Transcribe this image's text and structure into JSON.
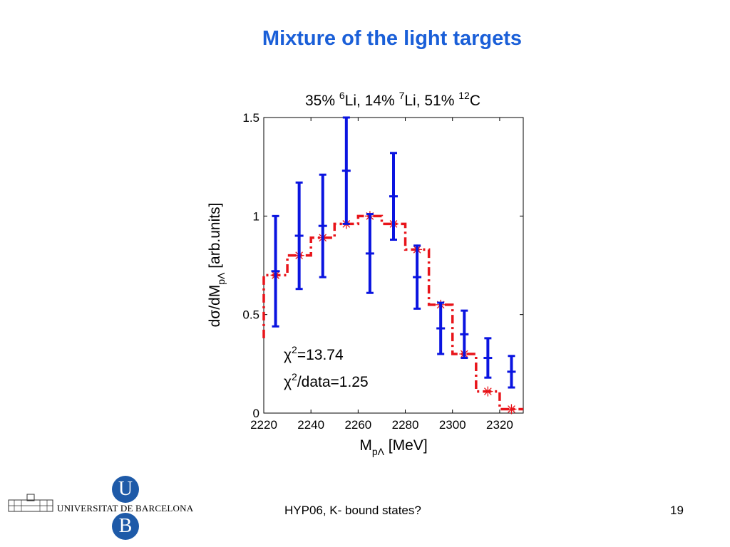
{
  "slide": {
    "title": "Mixture of the light targets",
    "footer_center": "HYP06, K- bound states?",
    "page_number": "19",
    "logo": {
      "text": "UNIVERSITAT DE BARCELONA",
      "letter_top": "U",
      "letter_bottom": "B",
      "color": "#1e5aa8"
    }
  },
  "chart_data": {
    "type": "scatter",
    "title_parts": {
      "p1": "35% ",
      "s1": "6",
      "p2": "Li, 14% ",
      "s2": "7",
      "p3": "Li, 51% ",
      "s3": "12",
      "p4": "C"
    },
    "xlabel": {
      "main": "M",
      "sub": "pΛ",
      "unit": " [MeV]"
    },
    "ylabel": {
      "pre": "dσ/dM",
      "sub": "pΛ",
      "post": " [arb.units]"
    },
    "xlim": [
      2220,
      2330
    ],
    "ylim": [
      0,
      1.5
    ],
    "x_ticks": [
      2220,
      2240,
      2260,
      2280,
      2300,
      2320
    ],
    "y_ticks": [
      0,
      0.5,
      1,
      1.5
    ],
    "y_tick_labels": [
      "0",
      "0.5",
      "1",
      "1.5"
    ],
    "grid": false,
    "annotations": {
      "chi2_a": "χ",
      "chi2_sup": "2",
      "chi2_val": "=13.74",
      "chi2_b": "χ",
      "chi2_sup2": "2",
      "chi2_per": "/data=1.25"
    },
    "series": [
      {
        "style": "errorbar",
        "color": "#0a14e0",
        "x": [
          2225,
          2235,
          2245,
          2255,
          2265,
          2275,
          2285,
          2295,
          2305,
          2315,
          2325
        ],
        "y": [
          0.72,
          0.9,
          0.95,
          1.23,
          0.81,
          1.1,
          0.69,
          0.43,
          0.4,
          0.28,
          0.21
        ],
        "err": [
          0.28,
          0.27,
          0.26,
          0.27,
          0.2,
          0.22,
          0.16,
          0.13,
          0.12,
          0.1,
          0.08
        ]
      },
      {
        "style": "star-step",
        "color": "#e8141a",
        "x": [
          2225,
          2235,
          2245,
          2255,
          2265,
          2275,
          2285,
          2295,
          2305,
          2315,
          2325
        ],
        "y": [
          0.7,
          0.8,
          0.89,
          0.96,
          1.0,
          0.96,
          0.83,
          0.55,
          0.3,
          0.11,
          0.02
        ]
      }
    ]
  }
}
